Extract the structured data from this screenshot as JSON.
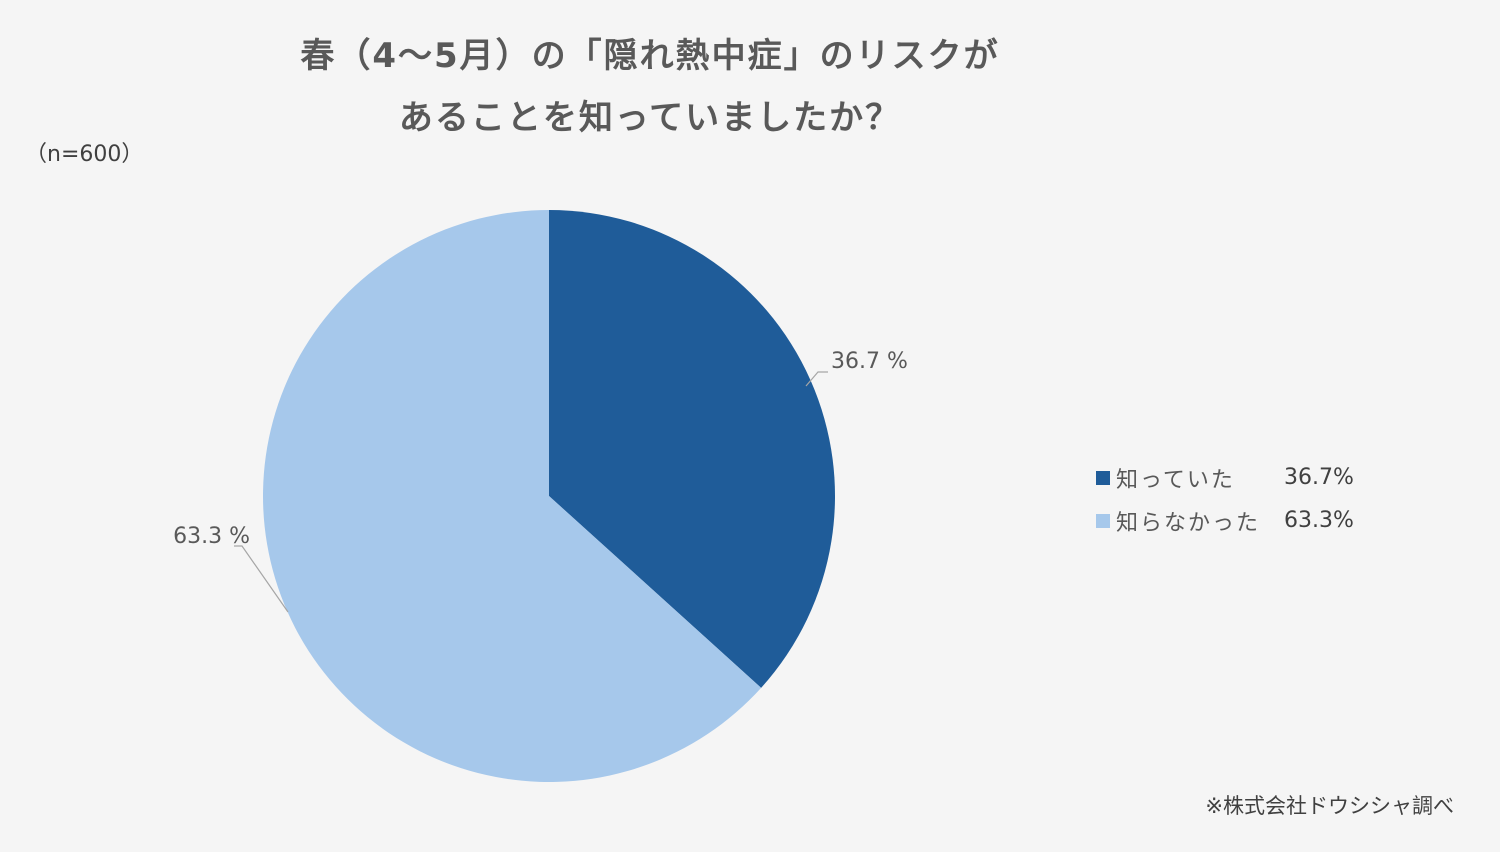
{
  "title_line1": "春（4～5月）の「隠れ熱中症」のリスクが",
  "title_line2": "あることを知っていましたか？",
  "sample_size": "（n=600）",
  "source": "※株式会社ドウシシャ調べ",
  "chart_data": {
    "type": "pie",
    "title": "春（4～5月）の「隠れ熱中症」のリスクがあることを知っていましたか？",
    "slices": [
      {
        "label": "知っていた",
        "value": 36.7,
        "data_label": "36.7 %",
        "legend_value": "36.7%",
        "color": "#1f5c99"
      },
      {
        "label": "知らなかった",
        "value": 63.3,
        "data_label": "63.3 %",
        "legend_value": "63.3%",
        "color": "#a6c8eb"
      }
    ],
    "start_angle": "12 o'clock",
    "direction": "clockwise",
    "legend_position": "right"
  }
}
